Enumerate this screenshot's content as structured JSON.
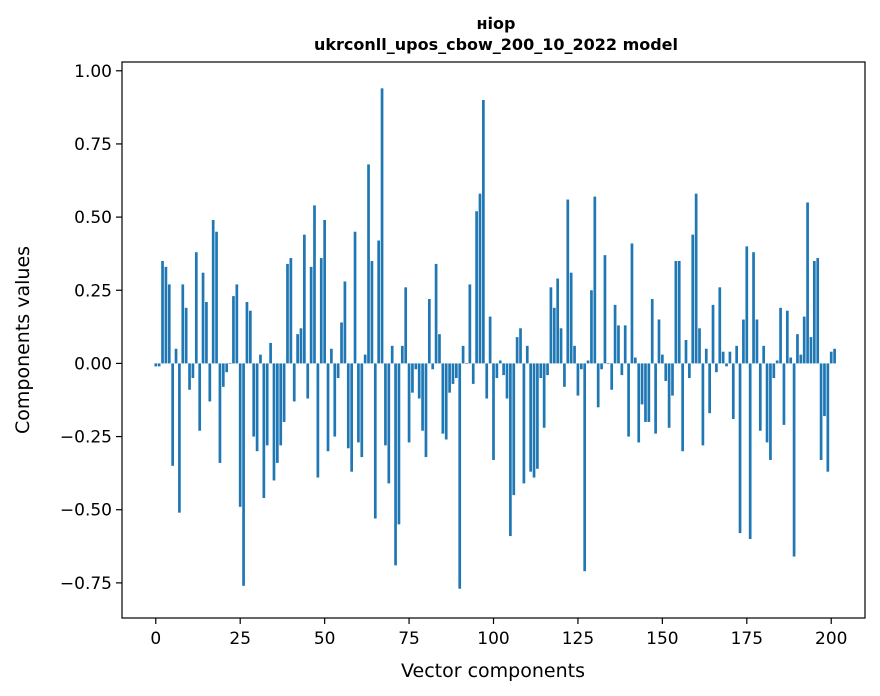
{
  "chart_data": {
    "type": "bar",
    "title_line1": "ніор",
    "title_line2": "ukrconll_upos_cbow_200_10_2022 model",
    "xlabel": "Vector components",
    "ylabel": "Components values",
    "xlim": [
      -10,
      210
    ],
    "ylim": [
      -0.87,
      1.03
    ],
    "xticks": [
      0,
      25,
      50,
      75,
      100,
      125,
      150,
      175,
      200
    ],
    "xtick_labels": [
      "0",
      "25",
      "50",
      "75",
      "100",
      "125",
      "150",
      "175",
      "200"
    ],
    "yticks": [
      -0.75,
      -0.5,
      -0.25,
      0.0,
      0.25,
      0.5,
      0.75,
      1.0
    ],
    "ytick_labels": [
      "−0.75",
      "−0.50",
      "−0.25",
      "0.00",
      "0.25",
      "0.50",
      "0.75",
      "1.00"
    ],
    "color": "#1f77b4",
    "values": [
      -0.01,
      -0.01,
      0.35,
      0.33,
      0.27,
      -0.35,
      0.05,
      -0.51,
      0.27,
      0.19,
      -0.09,
      -0.05,
      0.38,
      -0.23,
      0.31,
      0.21,
      -0.13,
      0.49,
      0.45,
      -0.34,
      -0.08,
      -0.03,
      0.0,
      0.23,
      0.27,
      -0.49,
      -0.76,
      0.21,
      0.18,
      -0.25,
      -0.3,
      0.03,
      -0.46,
      -0.28,
      0.07,
      -0.4,
      -0.34,
      -0.28,
      -0.2,
      0.34,
      0.36,
      -0.13,
      0.1,
      0.12,
      0.44,
      -0.12,
      0.33,
      0.54,
      -0.39,
      0.36,
      0.49,
      -0.3,
      0.05,
      -0.25,
      -0.05,
      0.14,
      0.28,
      -0.29,
      -0.37,
      0.45,
      -0.27,
      -0.32,
      0.03,
      0.68,
      0.35,
      -0.53,
      0.42,
      0.94,
      -0.28,
      -0.41,
      0.06,
      -0.69,
      -0.55,
      0.06,
      0.26,
      -0.27,
      -0.1,
      -0.02,
      -0.12,
      -0.23,
      -0.32,
      0.22,
      -0.02,
      0.34,
      0.1,
      -0.24,
      -0.26,
      -0.1,
      -0.07,
      -0.05,
      -0.77,
      0.06,
      0.0,
      0.27,
      -0.07,
      0.52,
      0.58,
      0.9,
      -0.12,
      0.16,
      -0.33,
      -0.05,
      0.01,
      -0.04,
      -0.12,
      -0.59,
      -0.45,
      0.09,
      0.12,
      -0.41,
      0.06,
      -0.37,
      -0.39,
      -0.36,
      -0.05,
      -0.22,
      -0.04,
      0.26,
      0.19,
      0.29,
      0.12,
      -0.08,
      0.56,
      0.31,
      0.06,
      -0.11,
      -0.02,
      -0.71,
      0.01,
      0.25,
      0.57,
      -0.15,
      -0.02,
      0.37,
      0.0,
      -0.09,
      0.2,
      0.13,
      -0.04,
      0.13,
      -0.25,
      0.41,
      0.02,
      -0.27,
      -0.14,
      -0.2,
      -0.2,
      0.22,
      -0.24,
      0.15,
      0.03,
      -0.06,
      -0.22,
      -0.11,
      0.35,
      0.35,
      -0.3,
      0.08,
      -0.05,
      0.44,
      0.58,
      0.12,
      -0.28,
      0.05,
      -0.17,
      0.2,
      -0.03,
      0.26,
      0.04,
      -0.01,
      0.04,
      -0.19,
      0.06,
      -0.58,
      0.15,
      0.4,
      -0.6,
      0.38,
      0.15,
      -0.23,
      0.06,
      -0.27,
      -0.33,
      -0.05,
      0.01,
      0.19,
      -0.21,
      0.18,
      0.02,
      -0.66,
      0.1,
      0.03,
      0.16,
      0.55,
      0.09,
      0.35,
      0.36,
      -0.33,
      -0.18,
      -0.37,
      0.04,
      0.05
    ]
  }
}
